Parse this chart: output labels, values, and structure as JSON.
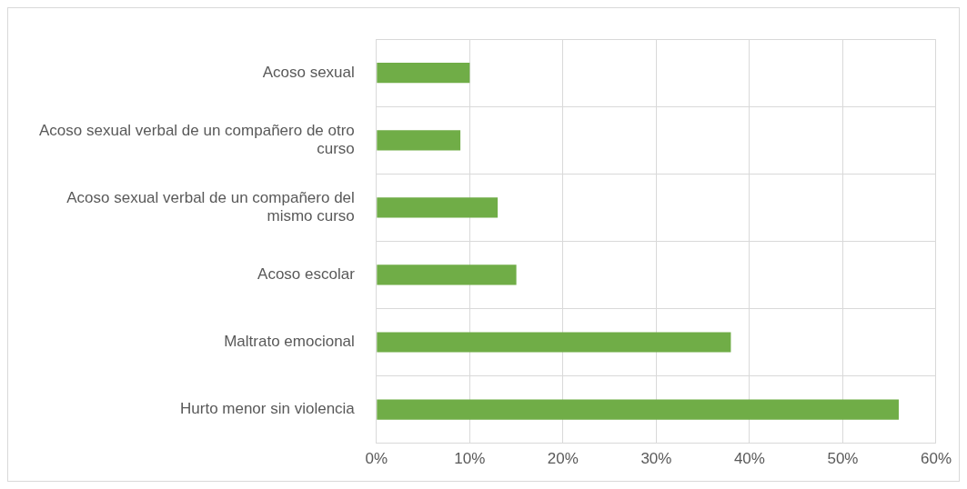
{
  "chart_data": {
    "type": "bar",
    "orientation": "horizontal",
    "categories": [
      "Acoso sexual",
      "Acoso sexual verbal de un compañero de otro curso",
      "Acoso sexual verbal de un compañero del mismo curso",
      "Acoso escolar",
      "Maltrato emocional",
      "Hurto menor sin violencia"
    ],
    "values": [
      10,
      9,
      13,
      15,
      38,
      56
    ],
    "color": "#70ad47",
    "xlim": [
      0,
      60
    ],
    "xticks": [
      {
        "value": 0,
        "label": "0%"
      },
      {
        "value": 10,
        "label": "10%"
      },
      {
        "value": 20,
        "label": "20%"
      },
      {
        "value": 30,
        "label": "30%"
      },
      {
        "value": 40,
        "label": "40%"
      },
      {
        "value": 50,
        "label": "50%"
      },
      {
        "value": 60,
        "label": "60%"
      }
    ],
    "grid": true,
    "legend": false
  }
}
